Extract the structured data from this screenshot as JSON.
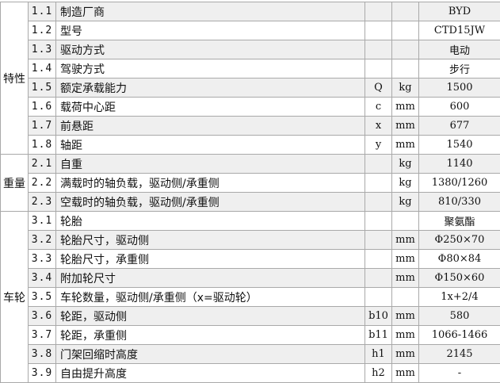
{
  "groups": [
    {
      "label": "特性",
      "rows": [
        {
          "no": "1.1",
          "desc": "制造厂商",
          "sym": "",
          "unit": "",
          "val": "BYD"
        },
        {
          "no": "1.2",
          "desc": "型号",
          "sym": "",
          "unit": "",
          "val": "CTD15JW"
        },
        {
          "no": "1.3",
          "desc": "驱动方式",
          "sym": "",
          "unit": "",
          "val": "电动"
        },
        {
          "no": "1.4",
          "desc": "驾驶方式",
          "sym": "",
          "unit": "",
          "val": "步行"
        },
        {
          "no": "1.5",
          "desc": "额定承载能力",
          "sym": "Q",
          "unit": "kg",
          "val": "1500"
        },
        {
          "no": "1.6",
          "desc": "载荷中心距",
          "sym": "c",
          "unit": "mm",
          "val": "600"
        },
        {
          "no": "1.7",
          "desc": "前悬距",
          "sym": "x",
          "unit": "mm",
          "val": "677"
        },
        {
          "no": "1.8",
          "desc": "轴距",
          "sym": "y",
          "unit": "mm",
          "val": "1540"
        }
      ]
    },
    {
      "label": "重量",
      "rows": [
        {
          "no": "2.1",
          "desc": "自重",
          "sym": "",
          "unit": "kg",
          "val": "1140"
        },
        {
          "no": "2.2",
          "desc": "满载时的轴负载，驱动侧/承重侧",
          "sym": "",
          "unit": "kg",
          "val": "1380/1260"
        },
        {
          "no": "2.3",
          "desc": "空载时的轴负载，驱动侧/承重侧",
          "sym": "",
          "unit": "kg",
          "val": "810/330"
        }
      ]
    },
    {
      "label": "车轮",
      "rows": [
        {
          "no": "3.1",
          "desc": "轮胎",
          "sym": "",
          "unit": "",
          "val": "聚氨酯"
        },
        {
          "no": "3.2",
          "desc": "轮胎尺寸，驱动侧",
          "sym": "",
          "unit": "mm",
          "val": "Φ250×70"
        },
        {
          "no": "3.3",
          "desc": "轮胎尺寸，承重侧",
          "sym": "",
          "unit": "mm",
          "val": "Φ80×84"
        },
        {
          "no": "3.4",
          "desc": "附加轮尺寸",
          "sym": "",
          "unit": "mm",
          "val": "Φ150×60"
        },
        {
          "no": "3.5",
          "desc": "车轮数量，驱动侧/承重侧（x=驱动轮）",
          "sym": "",
          "unit": "",
          "val": "1x+2/4"
        },
        {
          "no": "3.6",
          "desc": "轮距，驱动侧",
          "sym": "b10",
          "unit": "mm",
          "val": "580"
        },
        {
          "no": "3.7",
          "desc": "轮距，承重侧",
          "sym": "b11",
          "unit": "mm",
          "val": "1066-1466"
        },
        {
          "no": "3.8",
          "desc": "门架回缩时高度",
          "sym": "h1",
          "unit": "mm",
          "val": "2145"
        },
        {
          "no": "3.9",
          "desc": "自由提升高度",
          "sym": "h2",
          "unit": "mm",
          "val": "-"
        }
      ]
    }
  ]
}
